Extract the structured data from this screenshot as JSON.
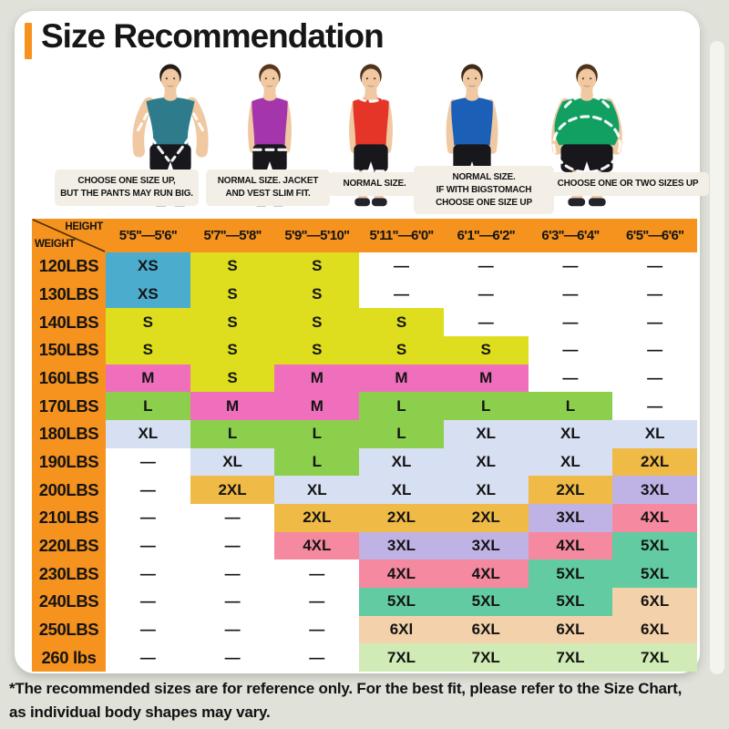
{
  "page": {
    "title": "Size Recommendation",
    "accent_color": "#F6921E",
    "background_color": "#E0E1D9",
    "card_color": "#FFFFFF"
  },
  "figures": [
    {
      "body_type": "muscular",
      "shirt_color": "#2E7B8C",
      "hair_color": "#241C18",
      "note_lines": [
        "CHOOSE ONE SIZE UP,",
        "BUT THE PANTS MAY RUN BIG."
      ]
    },
    {
      "body_type": "slim",
      "shirt_color": "#A535AB",
      "hair_color": "#59371F",
      "note_lines": [
        "NORMAL SIZE. JACKET",
        "AND VEST SLIM FIT."
      ]
    },
    {
      "body_type": "slim",
      "shirt_color": "#E53529",
      "hair_color": "#4E331D",
      "note_lines": [
        "NORMAL SIZE."
      ]
    },
    {
      "body_type": "regular",
      "shirt_color": "#1C5FB7",
      "hair_color": "#3C2A1A",
      "note_lines": [
        "NORMAL SIZE.",
        "IF WITH BIGSTOMACH",
        "CHOOSE ONE SIZE UP"
      ]
    },
    {
      "body_type": "heavy",
      "shirt_color": "#12A062",
      "hair_color": "#4E331D",
      "note_lines": [
        "CHOOSE ONE OR TWO SIZES UP"
      ]
    }
  ],
  "figure_style": {
    "skin_color": "#F0C8A2",
    "shorts_color": "#17171C",
    "shoe_color": "#23232B",
    "dash_color": "#FFFFFF",
    "note_bg": "#F3EFE6"
  },
  "chart_data": {
    "type": "table",
    "corner": {
      "top_label": "HEIGHT",
      "bottom_label": "WEIGHT"
    },
    "header_bg": "#F6921E",
    "columns": [
      "5'5''—5'6''",
      "5'7''—5'8''",
      "5'9''—5'10''",
      "5'11''—6'0''",
      "6'1''—6'2''",
      "6'3''—6'4''",
      "6'5''—6'6''"
    ],
    "size_colors": {
      "XS": "#4BACCE",
      "S": "#DEDE1E",
      "M": "#F06FBC",
      "L": "#8CCF4D",
      "XL": "#D7DFF2",
      "2XL": "#F0BA47",
      "3XL": "#BFB3E6",
      "4XL": "#F5899F",
      "5XL": "#63CBA1",
      "6XL": "#F3D1AA",
      "7XL": "#D0EBB5",
      "—": "#FFFFFF"
    },
    "rows": [
      {
        "weight": "120LBS",
        "sizes": [
          "XS",
          "S",
          "S",
          "—",
          "—",
          "—",
          "—"
        ]
      },
      {
        "weight": "130LBS",
        "sizes": [
          "XS",
          "S",
          "S",
          "—",
          "—",
          "—",
          "—"
        ]
      },
      {
        "weight": "140LBS",
        "sizes": [
          "S",
          "S",
          "S",
          "S",
          "—",
          "—",
          "—"
        ]
      },
      {
        "weight": "150LBS",
        "sizes": [
          "S",
          "S",
          "S",
          "S",
          "S",
          "—",
          "—"
        ]
      },
      {
        "weight": "160LBS",
        "sizes": [
          "M",
          "S",
          "M",
          "M",
          "M",
          "—",
          "—"
        ]
      },
      {
        "weight": "170LBS",
        "sizes": [
          "L",
          "M",
          "M",
          "L",
          "L",
          "L",
          "—"
        ]
      },
      {
        "weight": "180LBS",
        "sizes": [
          "XL",
          "L",
          "L",
          "L",
          "XL",
          "XL",
          "XL"
        ]
      },
      {
        "weight": "190LBS",
        "sizes": [
          "—",
          "XL",
          "L",
          "XL",
          "XL",
          "XL",
          "2XL"
        ]
      },
      {
        "weight": "200LBS",
        "sizes": [
          "—",
          "2XL",
          "XL",
          "XL",
          "XL",
          "2XL",
          "3XL"
        ]
      },
      {
        "weight": "210LBS",
        "sizes": [
          "—",
          "—",
          "2XL",
          "2XL",
          "2XL",
          "3XL",
          "4XL"
        ]
      },
      {
        "weight": "220LBS",
        "sizes": [
          "—",
          "—",
          "4XL",
          "3XL",
          "3XL",
          "4XL",
          "5XL"
        ]
      },
      {
        "weight": "230LBS",
        "sizes": [
          "—",
          "—",
          "—",
          "4XL",
          "4XL",
          "5XL",
          "5XL"
        ]
      },
      {
        "weight": "240LBS",
        "sizes": [
          "—",
          "—",
          "—",
          "5XL",
          "5XL",
          "5XL",
          "6XL"
        ]
      },
      {
        "weight": "250LBS",
        "sizes": [
          "—",
          "—",
          "—",
          "6Xl",
          "6XL",
          "6XL",
          "6XL"
        ]
      },
      {
        "weight": "260 lbs",
        "sizes": [
          "—",
          "—",
          "—",
          "7XL",
          "7XL",
          "7XL",
          "7XL"
        ]
      }
    ]
  },
  "footer": {
    "lines": [
      "*The recommended sizes are for reference only. For the best fit, please refer to the Size Chart,",
      "as individual body shapes may vary."
    ]
  }
}
